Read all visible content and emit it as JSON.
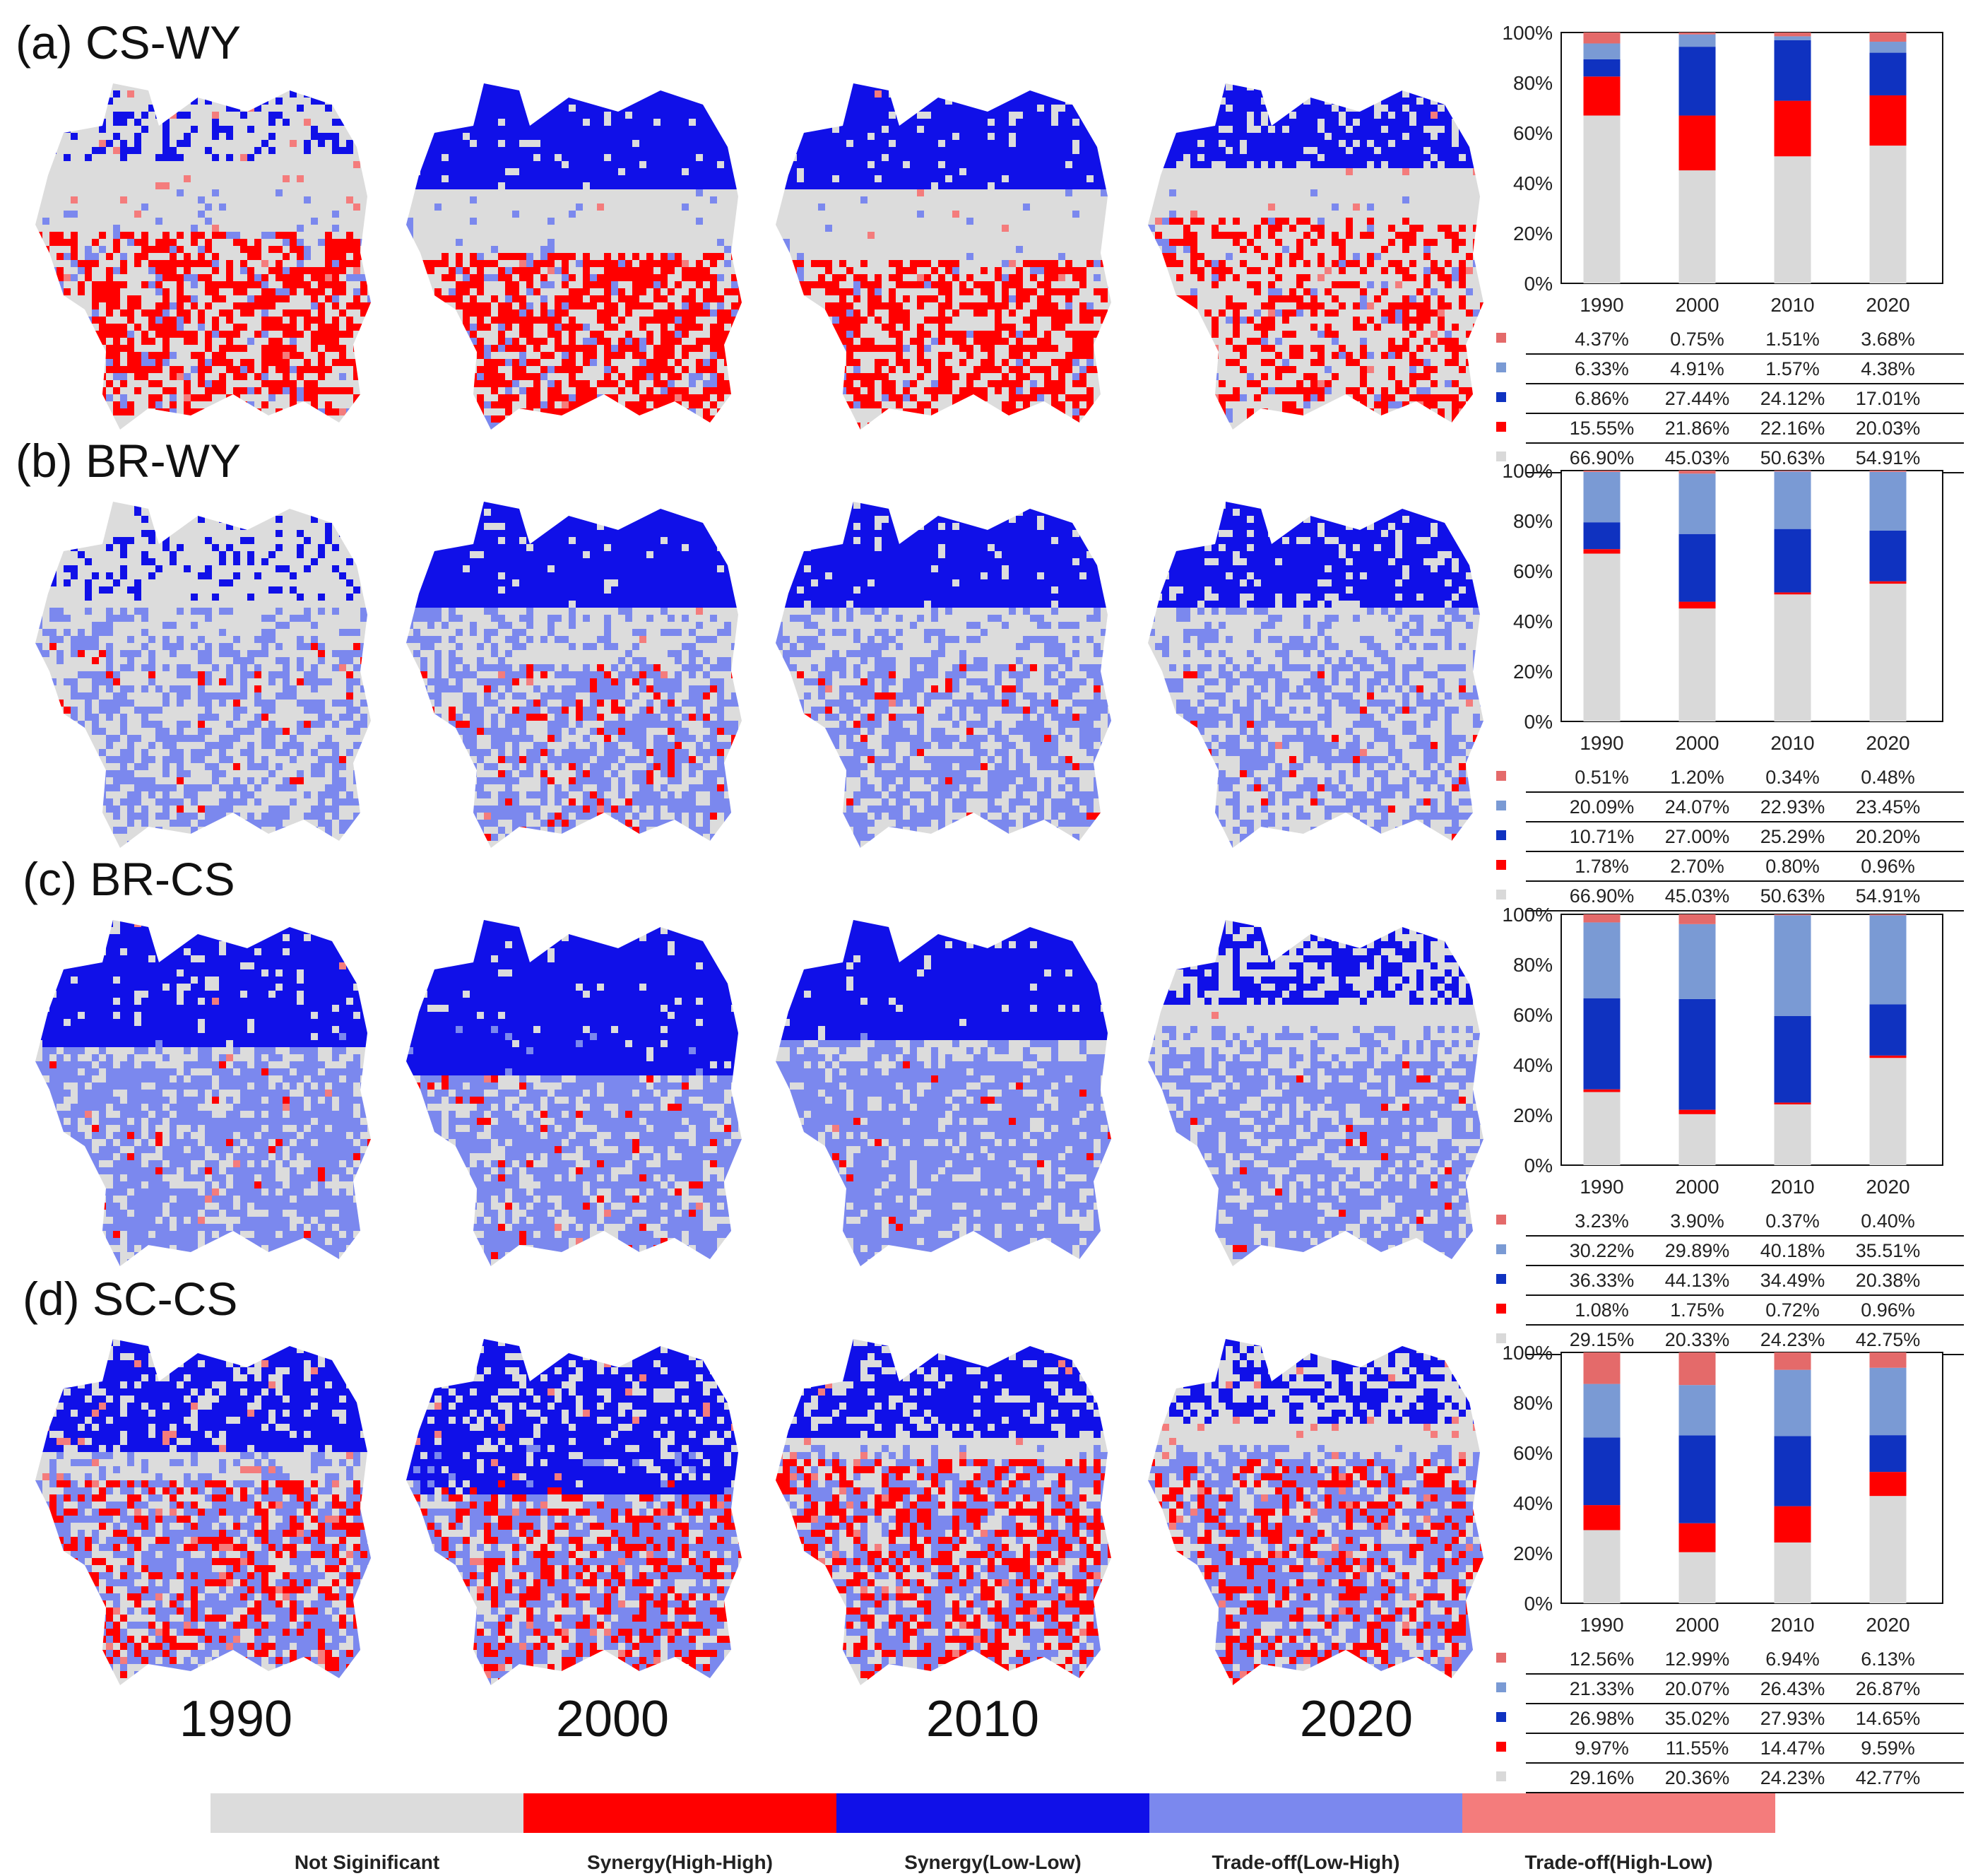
{
  "colors": {
    "not_significant": "#dcdcdc",
    "synergy_hh": "#ff0000",
    "synergy_ll": "#1010e8",
    "tradeoff_lh": "#7b88ee",
    "tradeoff_hl": "#f47c7c",
    "bar_ll": "#0f32c0",
    "bar_lh": "#7a9ad4",
    "bar_hl": "#e46a6a",
    "bar_ns": "#d9d9d9"
  },
  "years": [
    "1990",
    "2000",
    "2010",
    "2020"
  ],
  "legend": [
    {
      "key": "not_significant",
      "label": "Not Siginificant"
    },
    {
      "key": "synergy_hh",
      "label": "Synergy(High-High)"
    },
    {
      "key": "synergy_ll",
      "label": "Synergy(Low-Low)"
    },
    {
      "key": "tradeoff_lh",
      "label": "Trade-off(Low-High)"
    },
    {
      "key": "tradeoff_hl",
      "label": "Trade-off(High-Low)"
    }
  ],
  "panels": [
    {
      "title": "(a) CS-WY"
    },
    {
      "title": "(b) BR-WY"
    },
    {
      "title": "(c) BR-CS"
    },
    {
      "title": "(d) SC-CS"
    }
  ],
  "chart_data": [
    {
      "type": "bar",
      "stacked": true,
      "title": "(a) CS-WY",
      "categories": [
        "1990",
        "2000",
        "2010",
        "2020"
      ],
      "yticks": [
        "0%",
        "20%",
        "40%",
        "60%",
        "80%",
        "100%"
      ],
      "ylim": [
        0,
        100
      ],
      "series": [
        {
          "key": "tradeoff_hl",
          "labels": [
            "4.37%",
            "0.75%",
            "1.51%",
            "3.68%"
          ],
          "values": [
            4.37,
            0.75,
            1.51,
            3.68
          ]
        },
        {
          "key": "tradeoff_lh",
          "labels": [
            "6.33%",
            "4.91%",
            "1.57%",
            "4.38%"
          ],
          "values": [
            6.33,
            4.91,
            1.57,
            4.38
          ]
        },
        {
          "key": "synergy_ll",
          "labels": [
            "6.86%",
            "27.44%",
            "24.12%",
            "17.01%"
          ],
          "values": [
            6.86,
            27.44,
            24.12,
            17.01
          ]
        },
        {
          "key": "synergy_hh",
          "labels": [
            "15.55%",
            "21.86%",
            "22.16%",
            "20.03%"
          ],
          "values": [
            15.55,
            21.86,
            22.16,
            20.03
          ]
        },
        {
          "key": "not_significant",
          "labels": [
            "66.90%",
            "45.03%",
            "50.63%",
            "54.91%"
          ],
          "values": [
            66.9,
            45.03,
            50.63,
            54.91
          ]
        }
      ]
    },
    {
      "type": "bar",
      "stacked": true,
      "title": "(b) BR-WY",
      "categories": [
        "1990",
        "2000",
        "2010",
        "2020"
      ],
      "yticks": [
        "0%",
        "20%",
        "40%",
        "60%",
        "80%",
        "100%"
      ],
      "ylim": [
        0,
        100
      ],
      "series": [
        {
          "key": "tradeoff_hl",
          "labels": [
            "0.51%",
            "1.20%",
            "0.34%",
            "0.48%"
          ],
          "values": [
            0.51,
            1.2,
            0.34,
            0.48
          ]
        },
        {
          "key": "tradeoff_lh",
          "labels": [
            "20.09%",
            "24.07%",
            "22.93%",
            "23.45%"
          ],
          "values": [
            20.09,
            24.07,
            22.93,
            23.45
          ]
        },
        {
          "key": "synergy_ll",
          "labels": [
            "10.71%",
            "27.00%",
            "25.29%",
            "20.20%"
          ],
          "values": [
            10.71,
            27.0,
            25.29,
            20.2
          ]
        },
        {
          "key": "synergy_hh",
          "labels": [
            "1.78%",
            "2.70%",
            "0.80%",
            "0.96%"
          ],
          "values": [
            1.78,
            2.7,
            0.8,
            0.96
          ]
        },
        {
          "key": "not_significant",
          "labels": [
            "66.90%",
            "45.03%",
            "50.63%",
            "54.91%"
          ],
          "values": [
            66.9,
            45.03,
            50.63,
            54.91
          ]
        }
      ]
    },
    {
      "type": "bar",
      "stacked": true,
      "title": "(c) BR-CS",
      "categories": [
        "1990",
        "2000",
        "2010",
        "2020"
      ],
      "yticks": [
        "0%",
        "20%",
        "40%",
        "60%",
        "80%",
        "100%"
      ],
      "ylim": [
        0,
        100
      ],
      "series": [
        {
          "key": "tradeoff_hl",
          "labels": [
            "3.23%",
            "3.90%",
            "0.37%",
            "0.40%"
          ],
          "values": [
            3.23,
            3.9,
            0.37,
            0.4
          ]
        },
        {
          "key": "tradeoff_lh",
          "labels": [
            "30.22%",
            "29.89%",
            "40.18%",
            "35.51%"
          ],
          "values": [
            30.22,
            29.89,
            40.18,
            35.51
          ]
        },
        {
          "key": "synergy_ll",
          "labels": [
            "36.33%",
            "44.13%",
            "34.49%",
            "20.38%"
          ],
          "values": [
            36.33,
            44.13,
            34.49,
            20.38
          ]
        },
        {
          "key": "synergy_hh",
          "labels": [
            "1.08%",
            "1.75%",
            "0.72%",
            "0.96%"
          ],
          "values": [
            1.08,
            1.75,
            0.72,
            0.96
          ]
        },
        {
          "key": "not_significant",
          "labels": [
            "29.15%",
            "20.33%",
            "24.23%",
            "42.75%"
          ],
          "values": [
            29.15,
            20.33,
            24.23,
            42.75
          ]
        }
      ]
    },
    {
      "type": "bar",
      "stacked": true,
      "title": "(d) SC-CS",
      "categories": [
        "1990",
        "2000",
        "2010",
        "2020"
      ],
      "yticks": [
        "0%",
        "20%",
        "40%",
        "60%",
        "80%",
        "100%"
      ],
      "ylim": [
        0,
        100
      ],
      "series": [
        {
          "key": "tradeoff_hl",
          "labels": [
            "12.56%",
            "12.99%",
            "6.94%",
            "6.13%"
          ],
          "values": [
            12.56,
            12.99,
            6.94,
            6.13
          ]
        },
        {
          "key": "tradeoff_lh",
          "labels": [
            "21.33%",
            "20.07%",
            "26.43%",
            "26.87%"
          ],
          "values": [
            21.33,
            20.07,
            26.43,
            26.87
          ]
        },
        {
          "key": "synergy_ll",
          "labels": [
            "26.98%",
            "35.02%",
            "27.93%",
            "14.65%"
          ],
          "values": [
            26.98,
            35.02,
            27.93,
            14.65
          ]
        },
        {
          "key": "synergy_hh",
          "labels": [
            "9.97%",
            "11.55%",
            "14.47%",
            "9.59%"
          ],
          "values": [
            9.97,
            11.55,
            14.47,
            9.59
          ]
        },
        {
          "key": "not_significant",
          "labels": [
            "29.16%",
            "20.36%",
            "24.23%",
            "42.77%"
          ],
          "values": [
            29.16,
            20.36,
            24.23,
            42.77
          ]
        }
      ]
    }
  ]
}
